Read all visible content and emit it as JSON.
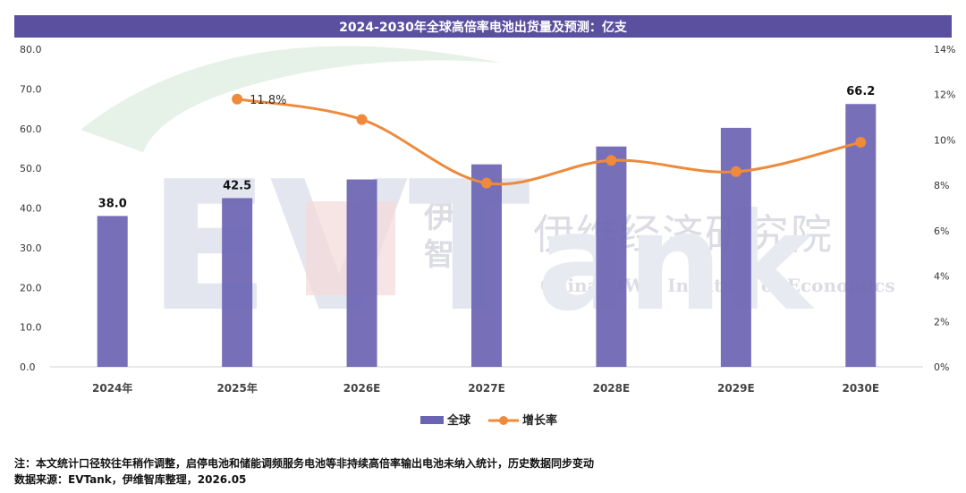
{
  "chart_data": {
    "type": "bar+line",
    "title": "2024-2030年全球高倍率电池出货量及预测：亿支",
    "categories": [
      "2024年",
      "2025年",
      "2026E",
      "2027E",
      "2028E",
      "2029E",
      "2030E"
    ],
    "series": [
      {
        "name": "全球",
        "type": "bar",
        "axis": "left",
        "values": [
          38.0,
          42.5,
          47.2,
          51.0,
          55.5,
          60.2,
          66.2
        ],
        "data_labels": [
          "38.0",
          "42.5",
          "",
          "",
          "",
          "",
          "66.2"
        ]
      },
      {
        "name": "增长率",
        "type": "line",
        "axis": "right",
        "values": [
          null,
          11.8,
          10.9,
          8.1,
          9.1,
          8.6,
          9.9
        ],
        "data_labels": [
          "",
          "11.8%",
          "",
          "",
          "",
          "",
          ""
        ]
      }
    ],
    "y_left": {
      "min": 0,
      "max": 80,
      "ticks": [
        "0.0",
        "10.0",
        "20.0",
        "30.0",
        "40.0",
        "50.0",
        "60.0",
        "70.0",
        "80.0"
      ]
    },
    "y_right": {
      "min": 0,
      "max": 14,
      "ticks": [
        "0%",
        "2%",
        "4%",
        "6%",
        "8%",
        "10%",
        "12%",
        "14%"
      ]
    },
    "legend_position": "bottom",
    "colors": {
      "bar": "#6b64b3",
      "line": "#ee8a3a",
      "title_bg": "#5b4fa0"
    }
  },
  "watermark": {
    "cn": "伊维经济研究院",
    "en": "China YiWei Institute of Economics",
    "logo_cn": [
      "伊维",
      "智库"
    ],
    "brand": "EVTank"
  },
  "footnotes": {
    "note": "注：本文统计口径较往年稍作调整，启停电池和储能调频服务电池等非持续高倍率输出电池未纳入统计，历史数据同步变动",
    "source": "数据来源：EVTank，伊维智库整理，2026.05"
  }
}
